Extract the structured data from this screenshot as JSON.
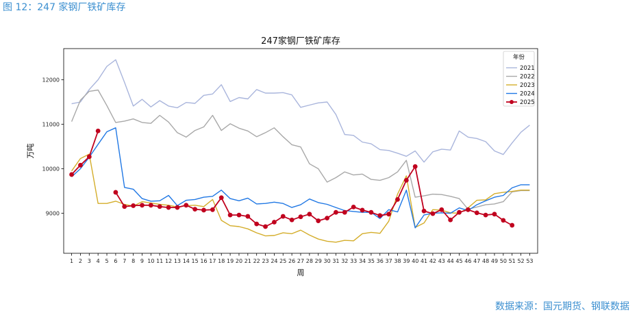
{
  "caption": "图 12：247 家钢厂铁矿库存",
  "source": "数据来源：国元期货、钢联数据",
  "chart_data": {
    "type": "line",
    "title": "247家钢厂铁矿库存",
    "xlabel": "周",
    "ylabel": "万吨",
    "legend_title": "年份",
    "legend_position": "top-right",
    "xlim": [
      0.1,
      53.9
    ],
    "ylim": [
      8100,
      12700
    ],
    "x_ticks": [
      1,
      2,
      3,
      4,
      5,
      6,
      7,
      8,
      9,
      10,
      11,
      12,
      13,
      14,
      15,
      16,
      17,
      18,
      19,
      20,
      21,
      22,
      23,
      24,
      25,
      26,
      27,
      28,
      29,
      30,
      31,
      32,
      33,
      34,
      35,
      36,
      37,
      38,
      39,
      40,
      41,
      42,
      43,
      44,
      45,
      46,
      47,
      48,
      49,
      50,
      51,
      52,
      53
    ],
    "y_ticks": [
      9000,
      10000,
      11000,
      12000
    ],
    "grid": false,
    "series": [
      {
        "name": "2021",
        "color": "#a9b5dc",
        "marker": false,
        "start_week": 1,
        "values": [
          11460,
          11500,
          11780,
          12000,
          12300,
          12450,
          11940,
          11410,
          11560,
          11390,
          11530,
          11410,
          11370,
          11490,
          11470,
          11650,
          11680,
          11890,
          11510,
          11600,
          11570,
          11780,
          11700,
          11700,
          11710,
          11660,
          11380,
          11430,
          11480,
          11500,
          11220,
          10770,
          10750,
          10600,
          10560,
          10430,
          10410,
          10350,
          10280,
          10400,
          10150,
          10380,
          10440,
          10420,
          10850,
          10710,
          10680,
          10610,
          10400,
          10320,
          10580,
          10820,
          10980
        ]
      },
      {
        "name": "2022",
        "color": "#a8a8a8",
        "marker": false,
        "start_week": 1,
        "values": [
          11060,
          11540,
          11740,
          11770,
          11420,
          11040,
          11070,
          11120,
          11040,
          11020,
          11200,
          11050,
          10810,
          10710,
          10860,
          10940,
          11200,
          10860,
          11010,
          10910,
          10850,
          10720,
          10810,
          10920,
          10720,
          10540,
          10490,
          10110,
          10000,
          9700,
          9800,
          9930,
          9860,
          9880,
          9760,
          9740,
          9800,
          9930,
          10190,
          9360,
          9390,
          9430,
          9420,
          9380,
          9330,
          9090,
          9140,
          9190,
          9210,
          9260,
          9480,
          9510,
          9510
        ]
      },
      {
        "name": "2023",
        "color": "#d4ad2a",
        "marker": false,
        "start_week": 1,
        "values": [
          9950,
          10230,
          10330,
          9220,
          9220,
          9270,
          9200,
          9160,
          9260,
          9230,
          9200,
          9180,
          9140,
          9170,
          9180,
          9150,
          9310,
          8840,
          8720,
          8700,
          8650,
          8560,
          8490,
          8500,
          8560,
          8540,
          8620,
          8510,
          8420,
          8370,
          8350,
          8390,
          8380,
          8540,
          8570,
          8550,
          8820,
          9430,
          9840,
          8680,
          8780,
          9080,
          9070,
          9010,
          9000,
          9120,
          9290,
          9300,
          9440,
          9470,
          9490,
          9520,
          9520
        ]
      },
      {
        "name": "2024",
        "color": "#1f77e4",
        "marker": false,
        "start_week": 1,
        "values": [
          9820,
          10000,
          10260,
          10550,
          10830,
          10920,
          9580,
          9540,
          9330,
          9270,
          9280,
          9400,
          9170,
          9290,
          9310,
          9360,
          9380,
          9520,
          9330,
          9280,
          9340,
          9210,
          9220,
          9250,
          9220,
          9130,
          9190,
          9320,
          9240,
          9200,
          9130,
          9060,
          9040,
          9020,
          9020,
          8880,
          9080,
          9030,
          9520,
          8670,
          8960,
          9000,
          9010,
          9000,
          9120,
          9060,
          9190,
          9280,
          9360,
          9400,
          9570,
          9640,
          9640
        ]
      },
      {
        "name": "2025",
        "color": "#c0001e",
        "marker": true,
        "start_week": 1,
        "values": [
          9870,
          10080,
          10270,
          10850,
          null,
          9470,
          9150,
          9170,
          9180,
          9180,
          9150,
          9130,
          9130,
          9180,
          9090,
          9070,
          9080,
          9350,
          8960,
          8960,
          8930,
          8760,
          8700,
          8800,
          8930,
          8850,
          8920,
          8980,
          8830,
          8890,
          9020,
          9020,
          9140,
          9070,
          9020,
          8950,
          8980,
          9310,
          9740,
          10050,
          9050,
          8990,
          9080,
          8850,
          9020,
          9080,
          9010,
          8960,
          8980,
          8840,
          8730
        ]
      }
    ]
  }
}
